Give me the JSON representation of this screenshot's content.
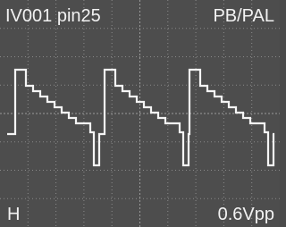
{
  "labels": {
    "top_left": "IV001 pin25",
    "top_right": "PB/PAL",
    "bottom_left": "H",
    "bottom_right": "0.6Vpp"
  }
}
